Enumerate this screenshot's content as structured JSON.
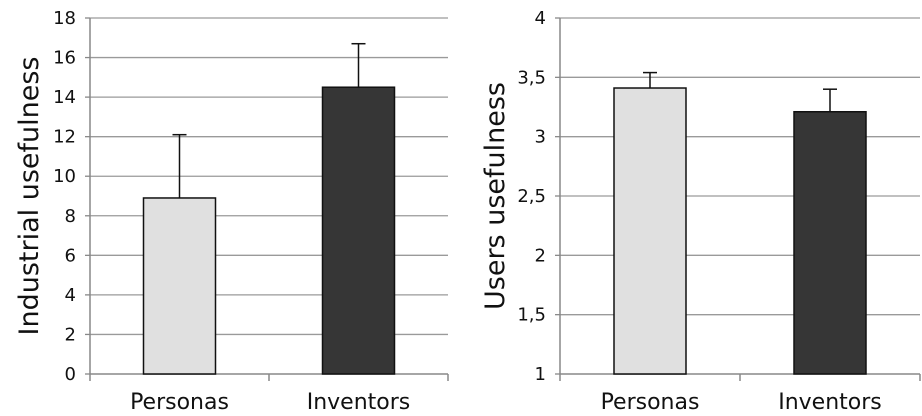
{
  "chart_data": [
    {
      "type": "bar",
      "categories": [
        "Personas",
        "Inventors"
      ],
      "values": [
        8.9,
        14.5
      ],
      "error_upper": [
        3.2,
        2.2
      ],
      "colors": [
        "#e0e0e0",
        "#363636"
      ],
      "ylabel": "Industrial usefulness",
      "ylim": [
        0,
        18
      ],
      "yticks": [
        "0",
        "2",
        "4",
        "6",
        "8",
        "10",
        "12",
        "14",
        "16",
        "18"
      ],
      "grid": true,
      "legend": "none"
    },
    {
      "type": "bar",
      "categories": [
        "Personas",
        "Inventors"
      ],
      "values": [
        3.41,
        3.21
      ],
      "error_upper": [
        0.13,
        0.19
      ],
      "colors": [
        "#e0e0e0",
        "#363636"
      ],
      "ylabel": "Users usefulness",
      "ylim": [
        1,
        4
      ],
      "yticks": [
        "1",
        "1,5",
        "2",
        "2,5",
        "3",
        "3,5",
        "4"
      ],
      "grid": true,
      "legend": "none"
    }
  ]
}
